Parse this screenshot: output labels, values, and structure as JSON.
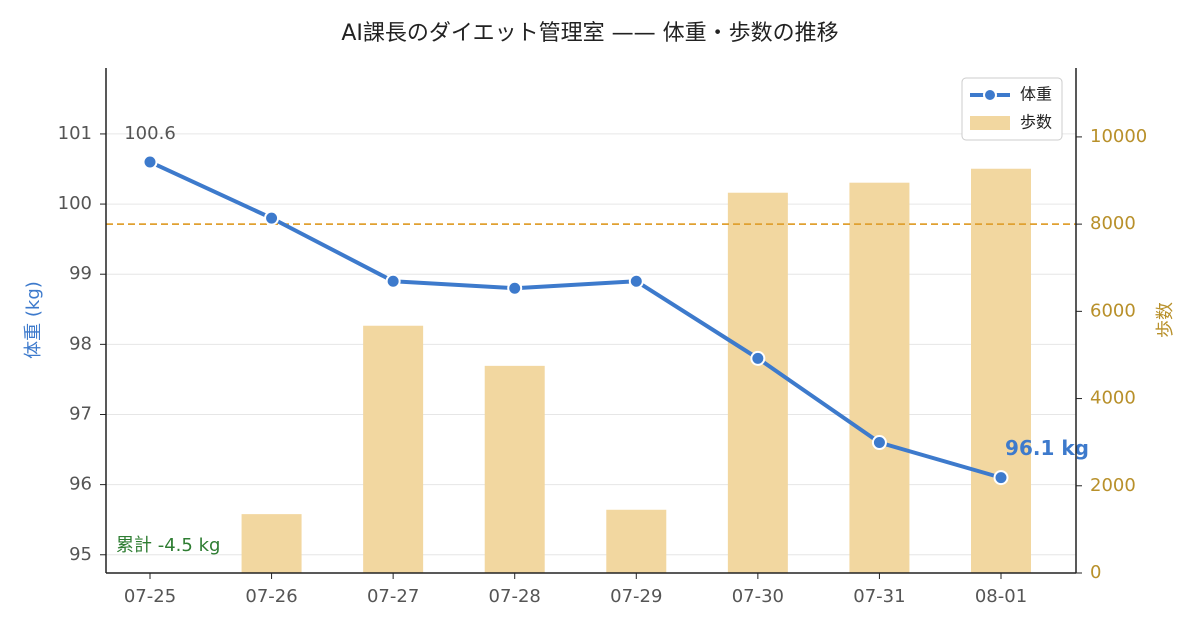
{
  "chart_data": {
    "type": "bar-line",
    "title": "AI課長のダイエット管理室 —— 体重・歩数の推移",
    "categories": [
      "07-25",
      "07-26",
      "07-27",
      "07-28",
      "07-29",
      "07-30",
      "07-31",
      "08-01"
    ],
    "series": [
      {
        "name": "体重",
        "type": "line",
        "color": "#3d7acc",
        "values": [
          100.6,
          99.8,
          98.9,
          98.8,
          98.9,
          97.8,
          96.6,
          96.1
        ],
        "value_labels": [
          "100.6",
          null,
          null,
          null,
          null,
          null,
          null,
          "96.1 kg"
        ]
      },
      {
        "name": "歩数",
        "type": "bar",
        "axis": "y2",
        "color": "#f2d7a0",
        "values": [
          0,
          1350,
          5670,
          4750,
          1450,
          8720,
          8950,
          9270
        ]
      }
    ],
    "ylabel": "体重 (kg)",
    "y2label": "歩数",
    "ylim": [
      94.74,
      101.94
    ],
    "yticks": [
      95,
      96,
      97,
      98,
      99,
      100,
      101
    ],
    "y2lim": [
      0,
      11580
    ],
    "y2ticks": [
      0,
      2000,
      4000,
      6000,
      8000,
      10000
    ],
    "target_line": {
      "value": 8000,
      "axis": "y2",
      "color": "#e0a030"
    },
    "annotation": "累計 -4.5 kg",
    "grid": true,
    "legend": "upper-right"
  }
}
